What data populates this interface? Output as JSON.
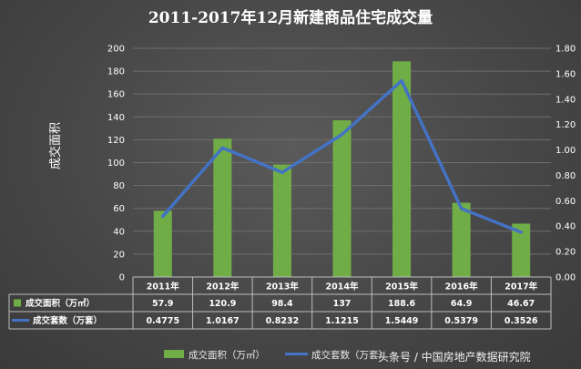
{
  "chart_data": {
    "type": "bar+line",
    "title": "2011-2017年12月新建商品住宅成交量",
    "ylabel": "成交面积",
    "categories": [
      "2011年",
      "2012年",
      "2013年",
      "2014年",
      "2015年",
      "2016年",
      "2017年"
    ],
    "series": [
      {
        "name": "成交面积（万㎡）",
        "type": "bar",
        "axis": "left",
        "values": [
          57.9,
          120.9,
          98.4,
          137,
          188.6,
          64.9,
          46.67
        ],
        "value_labels": [
          "57.9",
          "120.9",
          "98.4",
          "137",
          "188.6",
          "64.9",
          "46.67"
        ],
        "color": "#70ad47"
      },
      {
        "name": "成交套数（万套）",
        "type": "line",
        "axis": "right",
        "values": [
          0.4775,
          1.0167,
          0.8232,
          1.1215,
          1.5449,
          0.5379,
          0.3526
        ],
        "value_labels": [
          "0.4775",
          "1.0167",
          "0.8232",
          "1.1215",
          "1.5449",
          "0.5379",
          "0.3526"
        ],
        "color": "#4472c4"
      }
    ],
    "left_ticks": [
      "0",
      "20",
      "40",
      "60",
      "80",
      "100",
      "120",
      "140",
      "160",
      "180",
      "200"
    ],
    "right_ticks": [
      "0.00",
      "0.20",
      "0.40",
      "0.60",
      "0.80",
      "1.00",
      "1.20",
      "1.40",
      "1.60",
      "1.80"
    ],
    "ylim_left": [
      0,
      200
    ],
    "ylim_right": [
      0,
      1.8
    ],
    "grid": true,
    "data_table": true,
    "legend": "bottom",
    "legend_labels": [
      "成交面积（万㎡）",
      "成交套数（万套）"
    ]
  },
  "watermark": "头条号 / 中国房地产数据研究院"
}
